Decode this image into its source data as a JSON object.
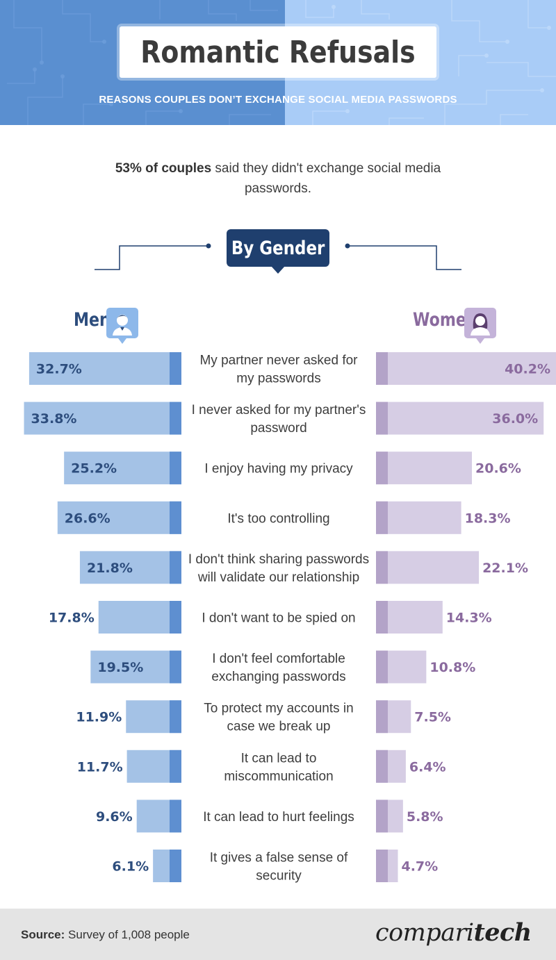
{
  "header": {
    "title": "Romantic Refusals",
    "subtitle": "REASONS COUPLES DON’T EXCHANGE SOCIAL MEDIA PASSWORDS"
  },
  "intro": {
    "highlight": "53% of couples",
    "rest": " said they didn't exchange social media passwords."
  },
  "section_label": "By Gender",
  "legend": {
    "men": "Men",
    "women": "Women",
    "men_icon": "male-user-icon",
    "women_icon": "female-user-icon"
  },
  "colors": {
    "header_left": "#5a8fd0",
    "header_right": "#a9ccf7",
    "men_bar": "#a4c2e6",
    "men_bar_edge": "#5e8fd0",
    "men_text": "#2d4d7d",
    "women_bar": "#d6cde4",
    "women_bar_edge": "#b3a3c8",
    "women_text": "#8a6a9e",
    "badge": "#1f3f6e"
  },
  "chart_data": {
    "type": "bar",
    "orientation": "horizontal-diverging",
    "categories": [
      [
        "My partner never asked for",
        "my passwords"
      ],
      [
        "I never asked for my partner's",
        "password"
      ],
      [
        "I enjoy having my privacy"
      ],
      [
        "It's too controlling"
      ],
      [
        "I don't think sharing passwords",
        "will validate our relationship"
      ],
      [
        "I don't want to be spied on"
      ],
      [
        "I don't feel comfortable",
        "exchanging passwords"
      ],
      [
        "To protect my accounts in",
        "case we break up"
      ],
      [
        "It can lead to",
        "miscommunication"
      ],
      [
        "It can lead to hurt feelings"
      ],
      [
        "It gives a false sense of",
        "security"
      ]
    ],
    "series": [
      {
        "name": "Men",
        "values": [
          32.7,
          33.8,
          25.2,
          26.6,
          21.8,
          17.8,
          19.5,
          11.9,
          11.7,
          9.6,
          6.1
        ],
        "labels": [
          "32.7%",
          "33.8%",
          "25.2%",
          "26.6%",
          "21.8%",
          "17.8%",
          "19.5%",
          "11.9%",
          "11.7%",
          "9.6%",
          "6.1%"
        ]
      },
      {
        "name": "Women",
        "values": [
          40.2,
          36.0,
          20.6,
          18.3,
          22.1,
          14.3,
          10.8,
          7.5,
          6.4,
          5.8,
          4.7
        ],
        "labels": [
          "40.2%",
          "36.0%",
          "20.6%",
          "18.3%",
          "22.1%",
          "14.3%",
          "10.8%",
          "7.5%",
          "6.4%",
          "5.8%",
          "4.7%"
        ]
      }
    ],
    "unit": "%",
    "title": "",
    "xlabel": "",
    "ylabel": "",
    "grid": false
  },
  "footer": {
    "source_label": "Source:",
    "source_text": " Survey of 1,008 people",
    "logo_regular": "compari",
    "logo_bold": "tech"
  }
}
